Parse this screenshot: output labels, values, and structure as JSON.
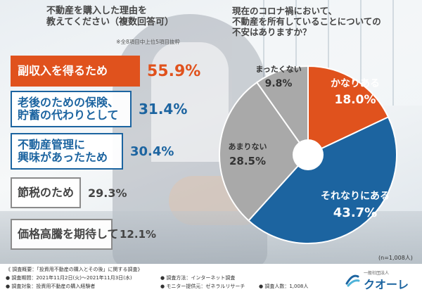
{
  "left_title_line1": "不動産を購入した理由を",
  "left_title_line2": "教えてください（複数回答可）",
  "left_note": "※全8項目中上位5項目抜粋",
  "right_title_line1": "現在のコロナ禍において、",
  "right_title_line2": "不動産を所有していることについての",
  "right_title_line3": "不安はありますか？",
  "n_label": "(n=1,008人)",
  "footer": {
    "overview": "《 調査概要：「投資用不動産の購入とその後」に関する調査》",
    "period": "● 調査期間：2021年11月2日(火)～2021年11月3日(水)",
    "target": "● 調査対象：投資用不動産の購入経験者",
    "method": "● 調査方法：インターネット調査",
    "provider": "● モニター提供元：ゼネラルリサーチ",
    "count": "● 調査人数：1,008人"
  },
  "logo": {
    "sub": "一般社団法人",
    "name": "クオーレ"
  },
  "colors": {
    "orange": "#e0521d",
    "blue": "#1c64a0",
    "gray": "#8b8b8b",
    "light_gray": "#a9a9a9"
  },
  "chart_data": [
    {
      "type": "bar",
      "orientation": "horizontal",
      "unit": "%",
      "categories": [
        [
          "副収入を得るため"
        ],
        [
          "老後のための保険、",
          "貯蓄の代わりとして"
        ],
        [
          "不動産管理に",
          "興味があったため"
        ],
        [
          "節税のため"
        ],
        [
          "価格高騰を期待して"
        ]
      ],
      "values": [
        55.9,
        31.4,
        30.4,
        29.3,
        12.1
      ],
      "value_labels": [
        "55.9%",
        "31.4%",
        "30.4%",
        "29.3%",
        "12.1%"
      ],
      "bar_colors": [
        "#e0521d",
        "#1c64a0",
        "#1c64a0",
        "#8b8b8b",
        "#8b8b8b"
      ]
    },
    {
      "type": "pie",
      "donut": true,
      "labels": [
        "かなりある",
        "それなりにある",
        "あまりない",
        "まったくない"
      ],
      "values": [
        18.0,
        43.7,
        28.5,
        9.8
      ],
      "value_labels": [
        "18.0%",
        "43.7%",
        "28.5%",
        "9.8%"
      ],
      "colors": [
        "#e0521d",
        "#1c64a0",
        "#a9a9a9",
        "#a9a9a9"
      ]
    }
  ]
}
